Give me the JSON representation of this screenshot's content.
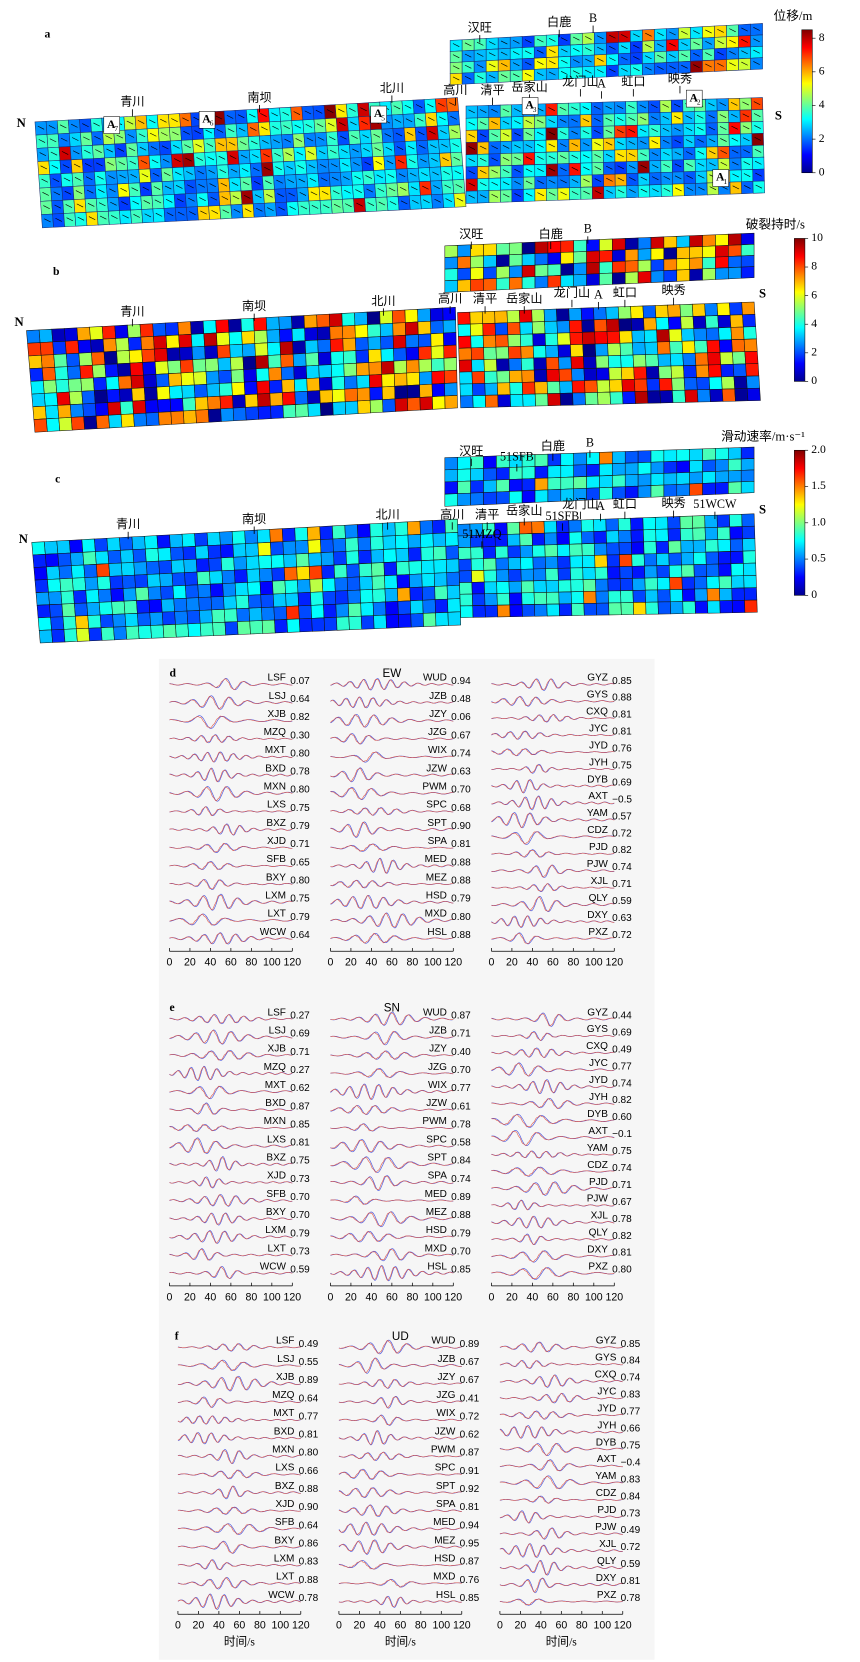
{
  "map_panels": [
    {
      "label": "a",
      "colorbar_title": "位移/m",
      "colorbar_range": [
        0,
        8.5
      ],
      "colorbar_ticks": [
        0,
        2,
        4,
        6,
        8
      ],
      "places": [
        "汉旺",
        "白鹿",
        "B",
        "青川",
        "南坝",
        "北川",
        "高川",
        "清平",
        "岳家山",
        "龙门山",
        "A",
        "虹口",
        "映秀",
        "N",
        "S"
      ],
      "asperities": [
        {
          "text": "A",
          "sub": "7"
        },
        {
          "text": "A",
          "sub": "6"
        },
        {
          "text": "A",
          "sub": "5"
        },
        {
          "text": "A",
          "sub": "3"
        },
        {
          "text": "A",
          "sub": "2"
        },
        {
          "text": "A",
          "sub": "1"
        }
      ]
    },
    {
      "label": "b",
      "colorbar_title": "破裂持时/s",
      "colorbar_range": [
        0,
        10
      ],
      "colorbar_ticks": [
        0,
        2,
        4,
        6,
        8,
        10
      ],
      "places": [
        "汉旺",
        "白鹿",
        "B",
        "青川",
        "南坝",
        "北川",
        "高川",
        "清平",
        "岳家山",
        "龙门山",
        "A",
        "虹口",
        "映秀",
        "N",
        "S"
      ],
      "asperities": []
    },
    {
      "label": "c",
      "colorbar_title": "滑动速率/m·s⁻¹",
      "colorbar_range": [
        0,
        2
      ],
      "colorbar_ticks": [
        0,
        {
          "value": 0.5,
          "label": "0.5"
        },
        {
          "value": 1,
          "label": "1.0"
        },
        {
          "value": 1.5,
          "label": "1.5"
        },
        {
          "value": 2,
          "label": "2.0"
        }
      ],
      "places": [
        "汉旺",
        "51SFB",
        "白鹿",
        "B",
        "青川",
        "南坝",
        "北川",
        "高川",
        "51MZQ",
        "清平",
        "岳家山",
        "51SFB",
        "龙门山",
        "A",
        "虹口",
        "映秀",
        "51WCW",
        "N",
        "S"
      ],
      "asperities": []
    }
  ],
  "wave_panels": [
    {
      "label": "d",
      "component": "EW",
      "xlim": [
        0,
        120
      ],
      "xticks": [
        0,
        20,
        40,
        60,
        80,
        100,
        120
      ],
      "columns": [
        [
          [
            "LSF",
            "0.07"
          ],
          [
            "LSJ",
            "0.64"
          ],
          [
            "XJB",
            "0.82"
          ],
          [
            "MZQ",
            "0.30"
          ],
          [
            "MXT",
            "0.80"
          ],
          [
            "BXD",
            "0.78"
          ],
          [
            "MXN",
            "0.80"
          ],
          [
            "LXS",
            "0.75"
          ],
          [
            "BXZ",
            "0.79"
          ],
          [
            "XJD",
            "0.71"
          ],
          [
            "SFB",
            "0.65"
          ],
          [
            "BXY",
            "0.80"
          ],
          [
            "LXM",
            "0.75"
          ],
          [
            "LXT",
            "0.79"
          ],
          [
            "WCW",
            "0.64"
          ]
        ],
        [
          [
            "WUD",
            "0.94"
          ],
          [
            "JZB",
            "0.48"
          ],
          [
            "JZY",
            "0.06"
          ],
          [
            "JZG",
            "0.67"
          ],
          [
            "WIX",
            "0.74"
          ],
          [
            "JZW",
            "0.63"
          ],
          [
            "PWM",
            "0.70"
          ],
          [
            "SPC",
            "0.68"
          ],
          [
            "SPT",
            "0.90"
          ],
          [
            "SPA",
            "0.81"
          ],
          [
            "MED",
            "0.88"
          ],
          [
            "MEZ",
            "0.88"
          ],
          [
            "HSD",
            "0.79"
          ],
          [
            "MXD",
            "0.80"
          ],
          [
            "HSL",
            "0.88"
          ]
        ],
        [
          [
            "GYZ",
            "0.85"
          ],
          [
            "GYS",
            "0.88"
          ],
          [
            "CXQ",
            "0.81"
          ],
          [
            "JYC",
            "0.81"
          ],
          [
            "JYD",
            "0.76"
          ],
          [
            "JYH",
            "0.75"
          ],
          [
            "DYB",
            "0.69"
          ],
          [
            "AXT",
            "−0.5"
          ],
          [
            "YAM",
            "0.57"
          ],
          [
            "CDZ",
            "0.72"
          ],
          [
            "PJD",
            "0.82"
          ],
          [
            "PJW",
            "0.74"
          ],
          [
            "XJL",
            "0.71"
          ],
          [
            "QLY",
            "0.59"
          ],
          [
            "DXY",
            "0.63"
          ],
          [
            "PXZ",
            "0.72"
          ]
        ]
      ]
    },
    {
      "label": "e",
      "component": "SN",
      "xlim": [
        0,
        120
      ],
      "xticks": [
        0,
        20,
        40,
        60,
        80,
        100,
        120
      ],
      "columns": [
        [
          [
            "LSF",
            "0.27"
          ],
          [
            "LSJ",
            "0.69"
          ],
          [
            "XJB",
            "0.71"
          ],
          [
            "MZQ",
            "0.27"
          ],
          [
            "MXT",
            "0.62"
          ],
          [
            "BXD",
            "0.87"
          ],
          [
            "MXN",
            "0.85"
          ],
          [
            "LXS",
            "0.81"
          ],
          [
            "BXZ",
            "0.75"
          ],
          [
            "XJD",
            "0.73"
          ],
          [
            "SFB",
            "0.70"
          ],
          [
            "BXY",
            "0.70"
          ],
          [
            "LXM",
            "0.79"
          ],
          [
            "LXT",
            "0.73"
          ],
          [
            "WCW",
            "0.59"
          ]
        ],
        [
          [
            "WUD",
            "0.87"
          ],
          [
            "JZB",
            "0.71"
          ],
          [
            "JZY",
            "0.40"
          ],
          [
            "JZG",
            "0.70"
          ],
          [
            "WIX",
            "0.77"
          ],
          [
            "JZW",
            "0.61"
          ],
          [
            "PWM",
            "0.78"
          ],
          [
            "SPC",
            "0.58"
          ],
          [
            "SPT",
            "0.84"
          ],
          [
            "SPA",
            "0.74"
          ],
          [
            "MED",
            "0.89"
          ],
          [
            "MEZ",
            "0.88"
          ],
          [
            "HSD",
            "0.79"
          ],
          [
            "MXD",
            "0.70"
          ],
          [
            "HSL",
            "0.85"
          ]
        ],
        [
          [
            "GYZ",
            "0.44"
          ],
          [
            "GYS",
            "0.69"
          ],
          [
            "CXQ",
            "0.49"
          ],
          [
            "JYC",
            "0.77"
          ],
          [
            "JYD",
            "0.74"
          ],
          [
            "JYH",
            "0.82"
          ],
          [
            "DYB",
            "0.60"
          ],
          [
            "AXT",
            "−0.1"
          ],
          [
            "YAM",
            "0.75"
          ],
          [
            "CDZ",
            "0.74"
          ],
          [
            "PJD",
            "0.71"
          ],
          [
            "PJW",
            "0.67"
          ],
          [
            "XJL",
            "0.78"
          ],
          [
            "QLY",
            "0.82"
          ],
          [
            "DXY",
            "0.81"
          ],
          [
            "PXZ",
            "0.80"
          ]
        ]
      ]
    },
    {
      "label": "f",
      "component": "UD",
      "xlim": [
        0,
        120
      ],
      "xticks": [
        0,
        20,
        40,
        60,
        80,
        100,
        120
      ],
      "xlabel": "时间/s",
      "columns": [
        [
          [
            "LSF",
            "0.49"
          ],
          [
            "LSJ",
            "0.55"
          ],
          [
            "XJB",
            "0.89"
          ],
          [
            "MZQ",
            "0.64"
          ],
          [
            "MXT",
            "0.77"
          ],
          [
            "BXD",
            "0.81"
          ],
          [
            "MXN",
            "0.80"
          ],
          [
            "LXS",
            "0.66"
          ],
          [
            "BXZ",
            "0.88"
          ],
          [
            "XJD",
            "0.90"
          ],
          [
            "SFB",
            "0.64"
          ],
          [
            "BXY",
            "0.86"
          ],
          [
            "LXM",
            "0.83"
          ],
          [
            "LXT",
            "0.88"
          ],
          [
            "WCW",
            "0.78"
          ]
        ],
        [
          [
            "WUD",
            "0.89"
          ],
          [
            "JZB",
            "0.67"
          ],
          [
            "JZY",
            "0.67"
          ],
          [
            "JZG",
            "0.41"
          ],
          [
            "WIX",
            "0.72"
          ],
          [
            "JZW",
            "0.62"
          ],
          [
            "PWM",
            "0.87"
          ],
          [
            "SPC",
            "0.91"
          ],
          [
            "SPT",
            "0.92"
          ],
          [
            "SPA",
            "0.81"
          ],
          [
            "MED",
            "0.94"
          ],
          [
            "MEZ",
            "0.95"
          ],
          [
            "HSD",
            "0.87"
          ],
          [
            "MXD",
            "0.76"
          ],
          [
            "HSL",
            "0.85"
          ]
        ],
        [
          [
            "GYZ",
            "0.85"
          ],
          [
            "GYS",
            "0.84"
          ],
          [
            "CXQ",
            "0.74"
          ],
          [
            "JYC",
            "0.83"
          ],
          [
            "JYD",
            "0.77"
          ],
          [
            "JYH",
            "0.66"
          ],
          [
            "DYB",
            "0.75"
          ],
          [
            "AXT",
            "−0.4"
          ],
          [
            "YAM",
            "0.83"
          ],
          [
            "CDZ",
            "0.84"
          ],
          [
            "PJD",
            "0.73"
          ],
          [
            "PJW",
            "0.49"
          ],
          [
            "XJL",
            "0.72"
          ],
          [
            "QLY",
            "0.59"
          ],
          [
            "DXY",
            "0.81"
          ],
          [
            "PXZ",
            "0.78"
          ]
        ]
      ]
    }
  ]
}
